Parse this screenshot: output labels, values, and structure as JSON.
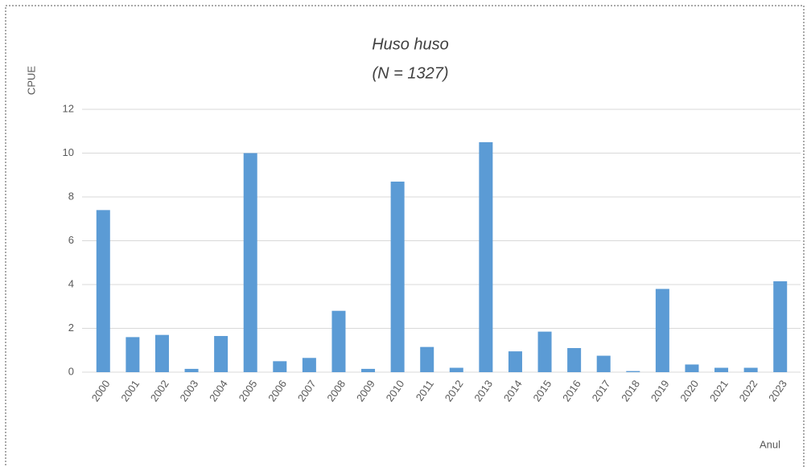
{
  "chart_data": {
    "type": "bar",
    "title": "Huso huso",
    "subtitle": "(N = 1327)",
    "y_label": "CPUE",
    "x_label": "Anul",
    "categories": [
      "2000",
      "2001",
      "2002",
      "2003",
      "2004",
      "2005",
      "2006",
      "2007",
      "2008",
      "2009",
      "2010",
      "2011",
      "2012",
      "2013",
      "2014",
      "2015",
      "2016",
      "2017",
      "2018",
      "2019",
      "2020",
      "2021",
      "2022",
      "2023"
    ],
    "values": [
      7.4,
      1.6,
      1.7,
      0.15,
      1.65,
      10.0,
      0.5,
      0.65,
      2.8,
      0.15,
      8.7,
      1.15,
      0.2,
      10.5,
      0.95,
      1.85,
      1.1,
      0.75,
      0.05,
      3.8,
      0.35,
      0.2,
      0.2,
      4.15
    ],
    "color": "#5b9bd5",
    "ylim": [
      0,
      12
    ],
    "yticks": [
      0,
      2,
      4,
      6,
      8,
      10,
      12
    ],
    "grid": true
  }
}
